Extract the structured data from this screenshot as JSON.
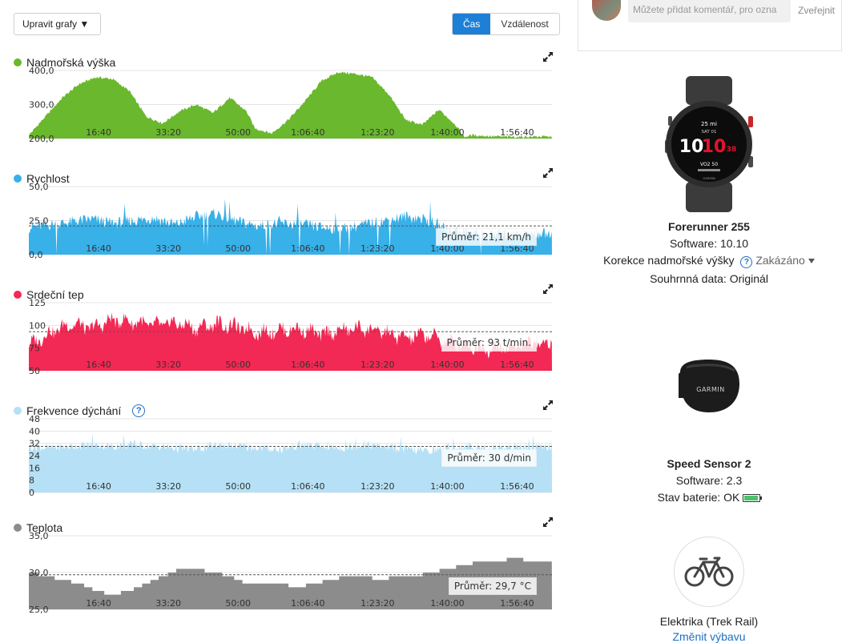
{
  "toolbar": {
    "edit_charts_label": "Upravit grafy ▼",
    "tab_time": "Čas",
    "tab_distance": "Vzdálenost"
  },
  "comment": {
    "placeholder": "Můžete přidat komentář, pro ozna",
    "publish_label": "Zveřejnit"
  },
  "x_ticks": [
    "16:40",
    "33:20",
    "50:00",
    "1:06:40",
    "1:23:20",
    "1:40:00",
    "1:56:40"
  ],
  "charts": [
    {
      "key": "elevation",
      "title": "Nadmořská výška",
      "color": "#6ab82d",
      "icon": "expand-icon",
      "y_ticks": [
        "400,0",
        "300,0",
        "200,0"
      ],
      "average_label": ""
    },
    {
      "key": "speed",
      "title": "Rychlost",
      "color": "#38b0e8",
      "icon": "expand-icon",
      "y_ticks": [
        "50,0",
        "25,0",
        "0,0"
      ],
      "average_label": "Průměr: 21,1 km/h"
    },
    {
      "key": "heart_rate",
      "title": "Srdeční tep",
      "color": "#f22954",
      "icon": "expand-icon",
      "y_ticks": [
        "125",
        "100",
        "75",
        "50"
      ],
      "average_label": "Průměr: 93 t/min."
    },
    {
      "key": "respiration",
      "title": "Frekvence dýchání",
      "color": "#b6e0f5",
      "icon": "expand-icon",
      "help_icon": "question-circle-icon",
      "y_ticks": [
        "48",
        "40",
        "32",
        "24",
        "16",
        "8",
        "0"
      ],
      "average_label": "Průměr: 30 d/min"
    },
    {
      "key": "temperature",
      "title": "Teplota",
      "color": "#8c8c8c",
      "icon": "expand-icon",
      "y_ticks": [
        "35,0",
        "30,0",
        "25,0"
      ],
      "average_label": "Průměr: 29,7 °C"
    }
  ],
  "chart_data": [
    {
      "type": "area",
      "title": "Nadmořská výška",
      "x_range": [
        "0:00",
        "2:05:00"
      ],
      "ylim": [
        200,
        400
      ],
      "grid": true,
      "series": [
        {
          "name": "Nadmořská výška",
          "x_minutes": [
            0,
            4,
            8,
            12,
            16,
            20,
            24,
            28,
            32,
            36,
            40,
            44,
            48,
            52,
            54,
            58,
            62,
            66,
            70,
            74,
            78,
            82,
            86,
            90,
            94,
            98,
            102,
            104,
            106,
            110,
            114,
            118,
            122,
            125
          ],
          "values": [
            210,
            265,
            320,
            360,
            380,
            375,
            340,
            265,
            245,
            280,
            300,
            275,
            320,
            280,
            230,
            215,
            255,
            310,
            370,
            395,
            390,
            380,
            330,
            255,
            240,
            285,
            240,
            205,
            210,
            207,
            205,
            205,
            206,
            205
          ]
        }
      ]
    },
    {
      "type": "area",
      "title": "Rychlost",
      "x_range": [
        "0:00",
        "2:05:00"
      ],
      "ylim": [
        0,
        50
      ],
      "average": 21.1,
      "unit": "km/h",
      "series": [
        {
          "name": "Rychlost",
          "x_minutes": [
            0,
            5,
            10,
            15,
            20,
            25,
            30,
            35,
            40,
            45,
            50,
            55,
            60,
            65,
            70,
            75,
            80,
            85,
            90,
            95,
            100,
            105,
            110,
            115,
            120,
            125
          ],
          "values": [
            20,
            22,
            24,
            26,
            23,
            25,
            27,
            22,
            28,
            30,
            24,
            21,
            23,
            22,
            20,
            19,
            22,
            25,
            28,
            26,
            18,
            16,
            14,
            15,
            15,
            16
          ]
        }
      ]
    },
    {
      "type": "area",
      "title": "Srdeční tep",
      "x_range": [
        "0:00",
        "2:05:00"
      ],
      "ylim": [
        50,
        125
      ],
      "average": 93,
      "unit": "t/min.",
      "series": [
        {
          "name": "Srdeční tep",
          "x_minutes": [
            0,
            5,
            10,
            15,
            20,
            25,
            30,
            35,
            40,
            45,
            50,
            55,
            60,
            65,
            70,
            75,
            80,
            85,
            90,
            95,
            100,
            105,
            110,
            115,
            120,
            125
          ],
          "values": [
            78,
            92,
            102,
            97,
            106,
            104,
            100,
            103,
            97,
            102,
            98,
            92,
            95,
            96,
            90,
            95,
            97,
            92,
            86,
            90,
            82,
            78,
            74,
            76,
            80,
            82
          ]
        }
      ]
    },
    {
      "type": "area",
      "title": "Frekvence dýchání",
      "x_range": [
        "0:00",
        "2:05:00"
      ],
      "ylim": [
        0,
        48
      ],
      "average": 30,
      "unit": "d/min",
      "series": [
        {
          "name": "Frekvence dýchání",
          "x_minutes": [
            0,
            5,
            10,
            15,
            20,
            25,
            30,
            35,
            40,
            45,
            50,
            55,
            60,
            65,
            70,
            75,
            80,
            85,
            90,
            95,
            100,
            105,
            110,
            115,
            120,
            125
          ],
          "values": [
            30,
            29,
            30,
            31,
            30,
            31,
            30,
            29,
            28,
            31,
            30,
            29,
            28,
            31,
            30,
            29,
            31,
            30,
            28,
            27,
            29,
            30,
            29,
            30,
            29,
            30
          ]
        }
      ]
    },
    {
      "type": "area",
      "title": "Teplota",
      "x_range": [
        "0:00",
        "2:05:00"
      ],
      "ylim": [
        25,
        35
      ],
      "average": 29.7,
      "unit": "°C",
      "series": [
        {
          "name": "Teplota",
          "x_minutes": [
            0,
            4,
            8,
            12,
            16,
            20,
            24,
            28,
            32,
            36,
            40,
            44,
            48,
            52,
            56,
            60,
            64,
            68,
            72,
            76,
            80,
            84,
            88,
            92,
            96,
            100,
            104,
            108,
            112,
            116,
            120,
            125
          ],
          "values": [
            30,
            29.5,
            29,
            28.5,
            27.5,
            27,
            27.5,
            28.5,
            29.5,
            30.5,
            30.5,
            30,
            29.5,
            28.5,
            28.5,
            28.5,
            28,
            28.5,
            29,
            29.5,
            29.5,
            29,
            29.5,
            29.5,
            30,
            30.5,
            31,
            31.5,
            31.5,
            32,
            31.5,
            31.5
          ]
        }
      ]
    }
  ],
  "devices": {
    "watch": {
      "name": "Forerunner 255",
      "software": "Software: 10.10",
      "elevation_correction_label": "Korekce nadmořské výšky",
      "elevation_correction_value": "Zakázáno",
      "summary": "Souhrnná data: Originál",
      "face": {
        "top": "25 mi",
        "day": "SAT 01",
        "hour": "10",
        "minute": "10",
        "second": "38",
        "vo2": "VO2 50",
        "brand": "GARMIN"
      }
    },
    "sensor": {
      "name": "Speed Sensor 2",
      "software": "Software: 2.3",
      "battery": "Stav baterie: OK",
      "brand": "GARMIN"
    },
    "bike": {
      "name": "Elektrika (Trek Rail)",
      "change_link": "Změnit výbavu"
    }
  }
}
